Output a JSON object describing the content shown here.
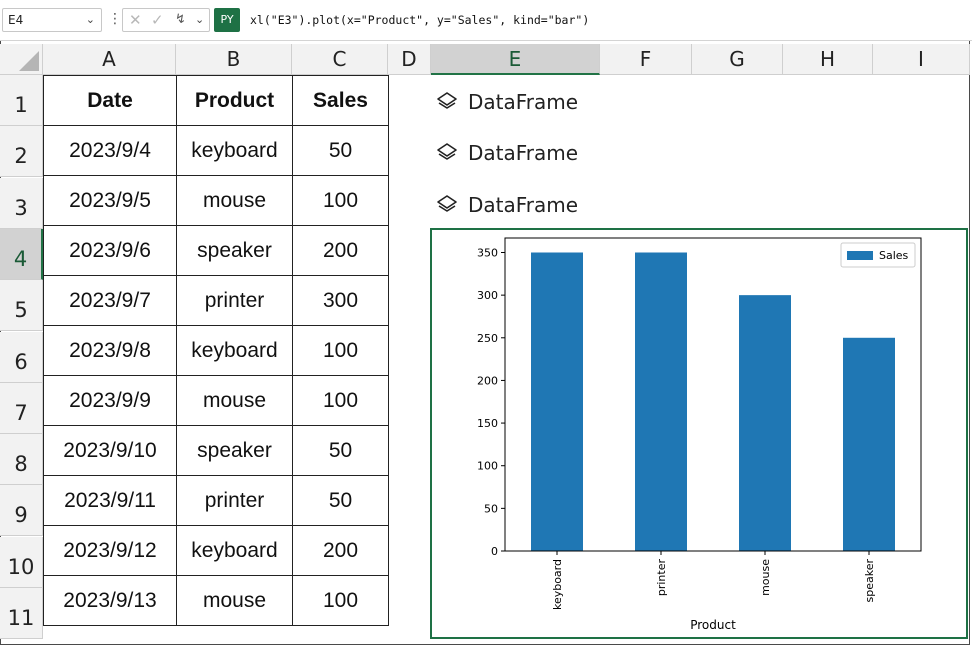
{
  "formula_bar": {
    "name_box": "E4",
    "py_badge": "PY",
    "formula": "xl(\"E3\").plot(x=\"Product\", y=\"Sales\", kind=\"bar\")",
    "icons": [
      "cancel-icon",
      "confirm-icon",
      "insert-function-icon"
    ]
  },
  "columns": [
    "A",
    "B",
    "C",
    "D",
    "E",
    "F",
    "G",
    "H",
    "I"
  ],
  "rows": [
    "1",
    "2",
    "3",
    "4",
    "5",
    "6",
    "7",
    "8",
    "9",
    "10",
    "11"
  ],
  "table": {
    "headers": [
      "Date",
      "Product",
      "Sales"
    ],
    "rows": [
      [
        "2023/9/4",
        "keyboard",
        "50"
      ],
      [
        "2023/9/5",
        "mouse",
        "100"
      ],
      [
        "2023/9/6",
        "speaker",
        "200"
      ],
      [
        "2023/9/7",
        "printer",
        "300"
      ],
      [
        "2023/9/8",
        "keyboard",
        "100"
      ],
      [
        "2023/9/9",
        "mouse",
        "100"
      ],
      [
        "2023/9/10",
        "speaker",
        "50"
      ],
      [
        "2023/9/11",
        "printer",
        "50"
      ],
      [
        "2023/9/12",
        "keyboard",
        "200"
      ],
      [
        "2023/9/13",
        "mouse",
        "100"
      ]
    ]
  },
  "dataframe_cells": [
    "DataFrame",
    "DataFrame",
    "DataFrame"
  ],
  "accent_color": "#217346",
  "chart_data": {
    "type": "bar",
    "categories": [
      "keyboard",
      "printer",
      "mouse",
      "speaker"
    ],
    "series": [
      {
        "name": "Sales",
        "values": [
          350,
          350,
          300,
          250
        ],
        "color": "#1f77b4"
      }
    ],
    "xlabel": "Product",
    "ylabel": "",
    "ylim": [
      0,
      367
    ],
    "yticks": [
      0,
      50,
      100,
      150,
      200,
      250,
      300,
      350
    ],
    "legend": "top-right",
    "grid": false
  }
}
